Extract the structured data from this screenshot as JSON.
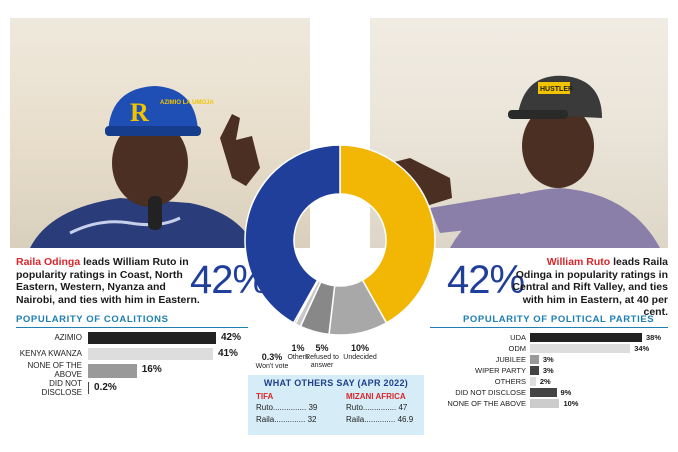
{
  "left_caption": {
    "name": "Raila Odinga",
    "text": " leads William Ruto in popularity ratings in Coast, North Eastern, Western, Nyanza and Nairobi, and ties with him in Eastern.",
    "big_pct": "42%",
    "cap_text": "AZIMIO LA UMOJA",
    "cap_letter": "R"
  },
  "right_caption": {
    "name": "William Ruto",
    "text": " leads Raila Odinga in popularity ratings in Central and Rift Valley, and ties with him in Eastern, at 40 per cent.",
    "big_pct": "42%",
    "cap_text": "HUSTLER"
  },
  "colors": {
    "azimio_blue": "#1f3f9a",
    "kenya_kwanza_yellow": "#f2b705",
    "dark_bar": "#222222",
    "light_bar": "#dddddd",
    "grey_bar": "#999999",
    "accent_red": "#d8262b",
    "section_blue": "#1d7fb4",
    "box_bg": "#d6ecf6"
  },
  "chart_data": [
    {
      "type": "pie",
      "subtype": "donut",
      "slices": [
        {
          "label": "",
          "value": 42,
          "display": "",
          "color": "#1f3f9a"
        },
        {
          "label": "",
          "value": 42,
          "display": "",
          "color": "#f2b705"
        },
        {
          "label": "Undecided",
          "value": 10,
          "display": "10%",
          "color": "#a8a8a8"
        },
        {
          "label": "Refused to answer",
          "value": 5,
          "display": "5%",
          "color": "#888888"
        },
        {
          "label": "Others",
          "value": 1,
          "display": "1%",
          "color": "#c8c8c8"
        },
        {
          "label": "Won't vote",
          "value": 0.3,
          "display": "0.3%",
          "color": "#333333"
        }
      ]
    },
    {
      "type": "bar",
      "orientation": "horizontal",
      "title": "POPULARITY OF COALITIONS",
      "categories": [
        "AZIMIO",
        "KENYA KWANZA",
        "NONE OF THE ABOVE",
        "DID NOT DISCLOSE"
      ],
      "values": [
        42,
        41,
        16,
        0.2
      ],
      "value_labels": [
        "42%",
        "41%",
        "16%",
        "0.2%"
      ],
      "colors": [
        "#222222",
        "#dddddd",
        "#999999",
        "#444444"
      ]
    },
    {
      "type": "bar",
      "orientation": "horizontal",
      "title": "POPULARITY OF POLITICAL PARTIES",
      "categories": [
        "UDA",
        "ODM",
        "JUBILEE",
        "WIPER PARTY",
        "OTHERS",
        "DID NOT DISCLOSE",
        "NONE OF THE ABOVE"
      ],
      "values": [
        38,
        34,
        3,
        3,
        2,
        9,
        10
      ],
      "value_labels": [
        "38%",
        "34%",
        "3%",
        "3%",
        "2%",
        "9%",
        "10%"
      ],
      "colors": [
        "#222222",
        "#dddddd",
        "#999999",
        "#444444",
        "#dddddd",
        "#444444",
        "#cccccc"
      ]
    },
    {
      "type": "table",
      "title": "WHAT OTHERS SAY (APR 2022)",
      "pollsters": [
        {
          "name": "TIFA",
          "rows": [
            {
              "label": "Ruto",
              "dots": "...............",
              "value": "39"
            },
            {
              "label": "Raila",
              "dots": "..............",
              "value": "32"
            }
          ]
        },
        {
          "name": "MIZANI AFRICA",
          "rows": [
            {
              "label": "Ruto",
              "dots": "...............",
              "value": "47"
            },
            {
              "label": "Raila",
              "dots": "..............",
              "value": "46.9"
            }
          ]
        }
      ]
    }
  ]
}
